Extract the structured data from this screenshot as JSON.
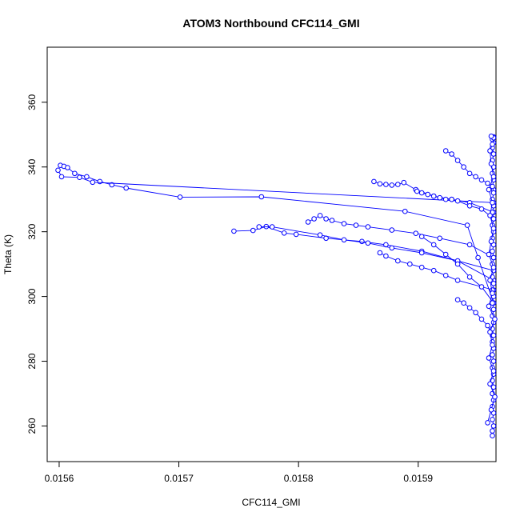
{
  "chart_data": {
    "type": "scatter",
    "title": "ATOM3 Northbound CFC114_GMI",
    "xlabel": "CFC114_GMI",
    "ylabel": "Theta (K)",
    "xlim": [
      0.01559,
      0.015965
    ],
    "ylim": [
      249,
      377
    ],
    "xticks": [
      0.0156,
      0.0157,
      0.0158,
      0.0159
    ],
    "xtick_labels": [
      "0.0156",
      "0.0157",
      "0.0158",
      "0.0159"
    ],
    "yticks": [
      260,
      280,
      300,
      320,
      340,
      360
    ],
    "ytick_labels": [
      "260",
      "280",
      "300",
      "320",
      "340",
      "360"
    ],
    "series_color": "#0000ff",
    "marker": "open-circle",
    "connected": true,
    "grid": false,
    "series": [
      {
        "x": [
          0.015601,
          0.015604,
          0.015607,
          0.015613,
          0.015623,
          0.015634,
          0.015644,
          0.015656,
          0.015701,
          0.015769,
          0.015889,
          0.015941,
          0.01595,
          0.015963
        ],
        "y": [
          340.5,
          340.2,
          339.8,
          338.0,
          337.0,
          335.5,
          334.5,
          333.5,
          330.7,
          330.8,
          326.3,
          322.0,
          312.0,
          298.0
        ]
      },
      {
        "x": [
          0.015599,
          0.015602,
          0.015617,
          0.015628,
          0.015963
        ],
        "y": [
          339.0,
          337.0,
          336.8,
          335.3,
          329.0
        ]
      },
      {
        "x": [
          0.015746,
          0.015762,
          0.015773,
          0.015788,
          0.015798,
          0.015823,
          0.015853,
          0.015873,
          0.015903,
          0.015963
        ],
        "y": [
          320.2,
          320.4,
          321.6,
          319.6,
          319.2,
          318.0,
          317.0,
          316.0,
          314.0,
          308.0
        ]
      },
      {
        "x": [
          0.015767,
          0.015778,
          0.015818,
          0.015838,
          0.015858,
          0.015878,
          0.015903,
          0.015933,
          0.015963
        ],
        "y": [
          321.5,
          321.5,
          319.0,
          317.5,
          316.5,
          315.0,
          313.5,
          311.0,
          305.0
        ]
      },
      {
        "x": [
          0.015808,
          0.015813,
          0.015818,
          0.015823,
          0.015828,
          0.015838,
          0.015848,
          0.015858,
          0.015878,
          0.015898,
          0.015918,
          0.015943,
          0.015963
        ],
        "y": [
          323.0,
          324.0,
          325.0,
          324.0,
          323.5,
          322.5,
          322.0,
          321.5,
          320.5,
          319.5,
          318.0,
          316.0,
          312.0
        ]
      },
      {
        "x": [
          0.015868,
          0.015873,
          0.015883,
          0.015893,
          0.015903,
          0.015913,
          0.015923,
          0.015933,
          0.015963
        ],
        "y": [
          313.5,
          312.5,
          311.0,
          310.0,
          309.0,
          308.0,
          306.5,
          305.0,
          302.0
        ]
      },
      {
        "x": [
          0.015863,
          0.015868,
          0.015873,
          0.015878,
          0.015883,
          0.015888,
          0.015898,
          0.015913,
          0.015928,
          0.015943,
          0.015963
        ],
        "y": [
          335.5,
          334.8,
          334.6,
          334.4,
          334.6,
          335.2,
          333.0,
          331.0,
          330.0,
          329.0,
          326.0
        ]
      },
      {
        "x": [
          0.015899,
          0.015903,
          0.015908,
          0.015913,
          0.015918,
          0.015923,
          0.015928,
          0.015933,
          0.015943,
          0.015953,
          0.015963
        ],
        "y": [
          332.5,
          332.0,
          331.5,
          331.0,
          330.5,
          330.0,
          330.0,
          329.5,
          328.0,
          327.0,
          324.0
        ]
      },
      {
        "x": [
          0.015923,
          0.015928,
          0.015933,
          0.015938,
          0.015943,
          0.015948,
          0.015953,
          0.015958,
          0.015963
        ],
        "y": [
          345.0,
          344.0,
          342.0,
          340.0,
          338.0,
          337.0,
          336.0,
          335.0,
          333.0
        ]
      },
      {
        "x": [
          0.015903,
          0.015913,
          0.015923,
          0.015933,
          0.015943,
          0.015953,
          0.015963
        ],
        "y": [
          318.5,
          316.0,
          313.0,
          310.0,
          306.0,
          303.0,
          298.0
        ]
      },
      {
        "x": [
          0.015933,
          0.015938,
          0.015943,
          0.015948,
          0.015953,
          0.015958,
          0.015962
        ],
        "y": [
          299.0,
          298.0,
          296.5,
          295.0,
          293.0,
          291.0,
          288.0
        ]
      },
      {
        "x": [
          0.015962,
          0.015962,
          0.015963,
          0.015962,
          0.015963,
          0.015962,
          0.015963,
          0.015962,
          0.015963,
          0.015962,
          0.015963,
          0.015962,
          0.015963,
          0.015962,
          0.015963,
          0.015962,
          0.015963,
          0.015962,
          0.015963,
          0.015962,
          0.015963,
          0.015962,
          0.015963,
          0.015962,
          0.015963,
          0.015962,
          0.015963,
          0.015962,
          0.015963,
          0.015962,
          0.015963,
          0.015962,
          0.015963,
          0.015962,
          0.015963,
          0.015962,
          0.015963,
          0.015962,
          0.015963,
          0.015962,
          0.015963,
          0.015962,
          0.015963,
          0.015962,
          0.015963,
          0.015962,
          0.015963,
          0.015962,
          0.015963
        ],
        "y": [
          257.0,
          258.5,
          260.0,
          262.0,
          264.0,
          266.0,
          268.0,
          270.0,
          272.0,
          274.0,
          276.0,
          278.0,
          280.0,
          282.0,
          284.0,
          286.0,
          288.0,
          290.0,
          292.0,
          294.0,
          296.0,
          298.0,
          300.0,
          302.0,
          304.0,
          306.0,
          308.0,
          310.0,
          312.0,
          314.0,
          316.0,
          318.0,
          320.0,
          322.0,
          324.0,
          326.0,
          328.0,
          330.0,
          332.0,
          334.0,
          336.0,
          338.0,
          340.0,
          342.0,
          344.0,
          346.0,
          347.5,
          348.5,
          349.3
        ]
      },
      {
        "x": [
          0.015958,
          0.015961,
          0.015964,
          0.01596,
          0.015963,
          0.015959,
          0.015962,
          0.01596,
          0.015964,
          0.015959,
          0.015962,
          0.01596,
          0.015963,
          0.015959,
          0.015961,
          0.015963,
          0.01596,
          0.015962,
          0.015959,
          0.015963,
          0.015961,
          0.01596,
          0.015962,
          0.015963,
          0.015961
        ],
        "y": [
          261.0,
          265.0,
          269.0,
          273.0,
          277.0,
          281.0,
          285.0,
          289.0,
          293.0,
          297.0,
          301.0,
          305.0,
          309.0,
          313.0,
          317.0,
          321.0,
          325.0,
          329.0,
          333.0,
          337.0,
          341.0,
          345.0,
          347.0,
          349.0,
          349.5
        ]
      }
    ]
  }
}
